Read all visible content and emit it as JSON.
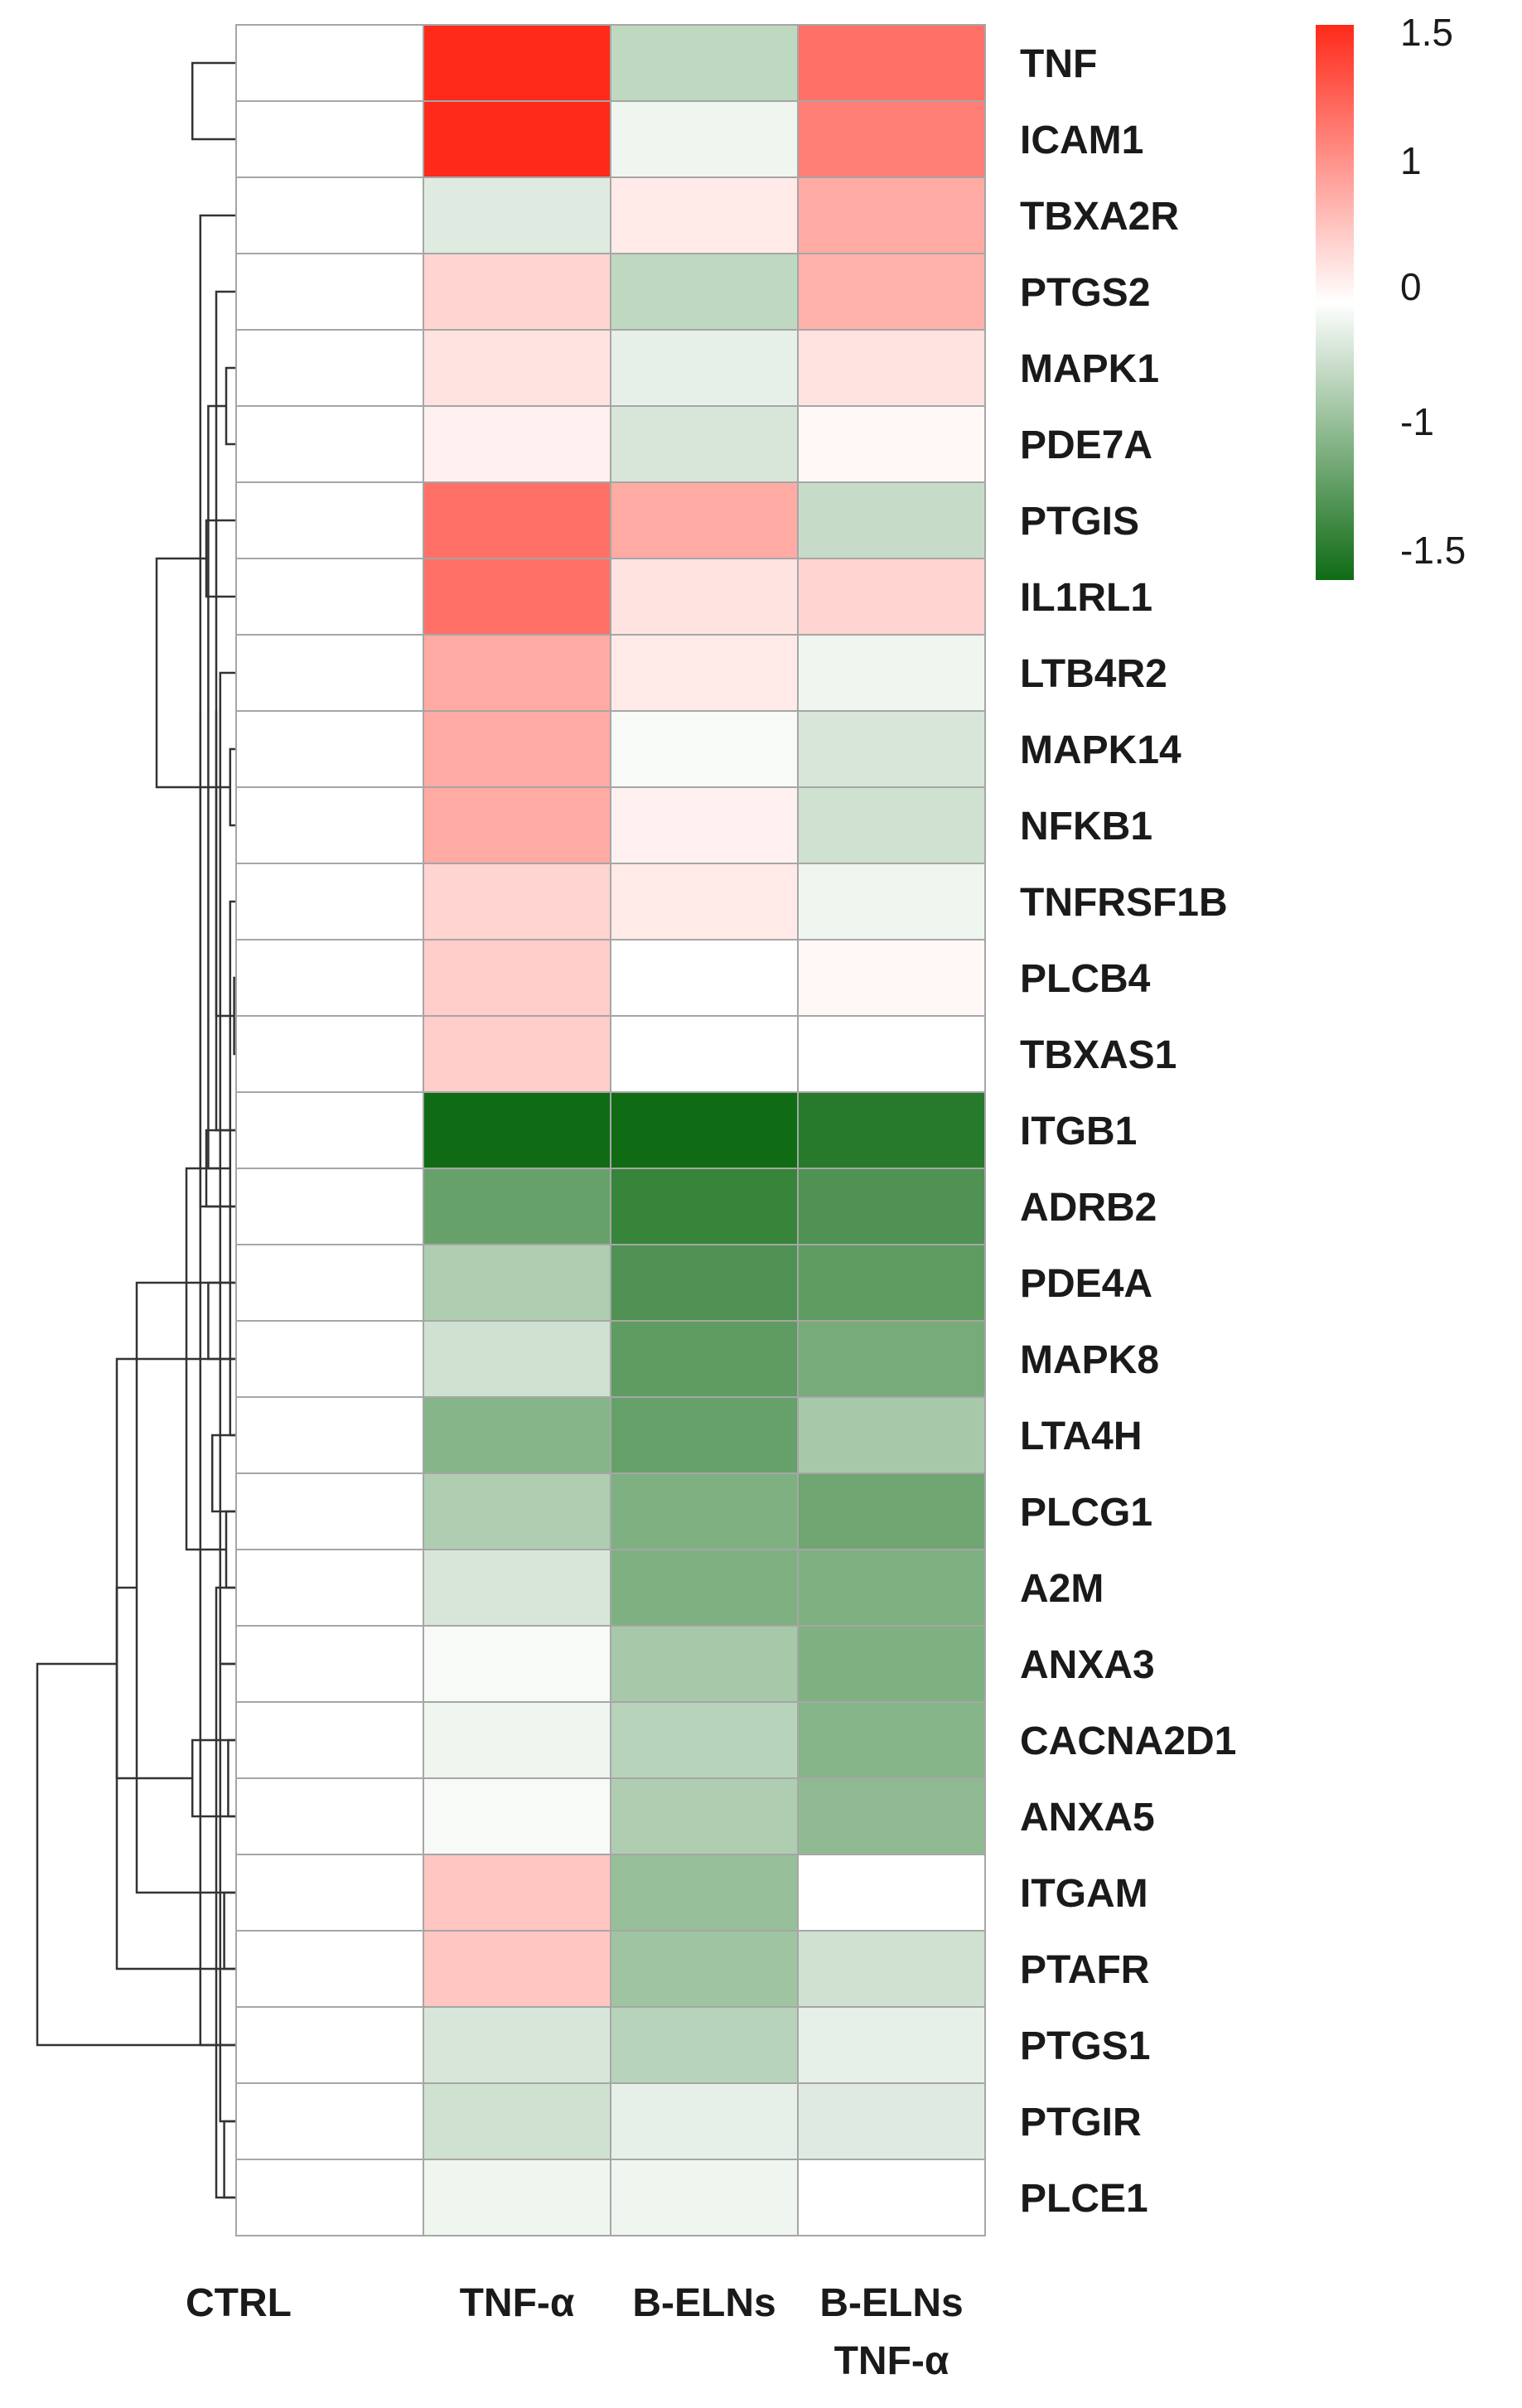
{
  "chart_data": {
    "type": "heatmap",
    "columns": [
      "CTRL",
      "TNF-α",
      "B-ELNs",
      "B-ELNs TNF-α"
    ],
    "column_labels": [
      {
        "lines": [
          "CTRL"
        ]
      },
      {
        "lines": [
          "TNF-α"
        ]
      },
      {
        "lines": [
          "B-ELNs"
        ]
      },
      {
        "lines": [
          "B-ELNs",
          "TNF-α"
        ]
      }
    ],
    "rows": [
      "TNF",
      "ICAM1",
      "TBXA2R",
      "PTGS2",
      "MAPK1",
      "PDE7A",
      "PTGIS",
      "IL1RL1",
      "LTB4R2",
      "MAPK14",
      "NFKB1",
      "TNFRSF1B",
      "PLCB4",
      "TBXAS1",
      "ITGB1",
      "ADRB2",
      "PDE4A",
      "MAPK8",
      "LTA4H",
      "PLCG1",
      "A2M",
      "ANXA3",
      "CACNA2D1",
      "ANXA5",
      "ITGAM",
      "PTAFR",
      "PTGS1",
      "PTGIR",
      "PLCE1"
    ],
    "values": [
      [
        0,
        1.5,
        -0.4,
        1.0
      ],
      [
        0,
        1.5,
        -0.1,
        0.9
      ],
      [
        0,
        -0.2,
        0.15,
        0.6
      ],
      [
        0,
        0.3,
        -0.4,
        0.55
      ],
      [
        0,
        0.2,
        -0.15,
        0.2
      ],
      [
        0,
        0.1,
        -0.25,
        0.05
      ],
      [
        0,
        1.0,
        0.6,
        -0.35
      ],
      [
        0,
        1.0,
        0.2,
        0.3
      ],
      [
        0,
        0.6,
        0.15,
        -0.1
      ],
      [
        0,
        0.6,
        -0.05,
        -0.25
      ],
      [
        0,
        0.6,
        0.1,
        -0.3
      ],
      [
        0,
        0.3,
        0.15,
        -0.1
      ],
      [
        0,
        0.35,
        0,
        0.05
      ],
      [
        0,
        0.35,
        0,
        0
      ],
      [
        0,
        -1.5,
        -1.5,
        -1.35
      ],
      [
        0,
        -0.95,
        -1.25,
        -1.1
      ],
      [
        0,
        -0.5,
        -1.1,
        -1.0
      ],
      [
        0,
        -0.3,
        -1.0,
        -0.85
      ],
      [
        0,
        -0.75,
        -0.95,
        -0.55
      ],
      [
        0,
        -0.5,
        -0.8,
        -0.9
      ],
      [
        0,
        -0.25,
        -0.8,
        -0.8
      ],
      [
        0,
        -0.05,
        -0.55,
        -0.8
      ],
      [
        0,
        -0.1,
        -0.45,
        -0.75
      ],
      [
        0,
        -0.05,
        -0.5,
        -0.7
      ],
      [
        0,
        0.4,
        -0.65,
        0
      ],
      [
        0,
        0.4,
        -0.6,
        -0.3
      ],
      [
        0,
        -0.25,
        -0.45,
        -0.15
      ],
      [
        0,
        -0.3,
        -0.15,
        -0.2
      ],
      [
        0,
        -0.1,
        -0.1,
        0
      ]
    ],
    "colorbar": {
      "ticks": [
        1.5,
        1,
        0,
        -1,
        -1.5
      ],
      "tick_labels": [
        "1.5",
        "1",
        "0",
        "-1",
        "-1.5"
      ],
      "range": [
        -1.5,
        1.5
      ]
    },
    "colors": {
      "high": "#ff2a1a",
      "mid": "#ffffff",
      "low": "#0f6b14",
      "grid": "#a6a6a6",
      "dendrogram": "#333333"
    },
    "dendrogram": {
      "side": "left",
      "merges": [
        [
          0,
          1,
          0.22
        ],
        [
          4,
          5,
          0.05
        ],
        [
          3,
          14,
          0.1
        ],
        [
          2,
          15,
          0.18
        ],
        [
          12,
          13,
          0.01
        ],
        [
          11,
          18,
          0.03
        ],
        [
          9,
          10,
          0.03
        ],
        [
          20,
          19,
          0.05
        ],
        [
          8,
          21,
          0.08
        ],
        [
          6,
          7,
          0.15
        ],
        [
          23,
          22,
          0.22
        ],
        [
          16,
          24,
          0.5
        ],
        [
          17,
          25,
          0.6
        ],
        [
          22,
          23,
          0.04
        ],
        [
          21,
          27,
          0.08
        ],
        [
          20,
          28,
          0.1
        ],
        [
          24,
          25,
          0.06
        ],
        [
          27,
          28,
          0.06
        ],
        [
          26,
          32,
          0.1
        ],
        [
          31,
          33,
          0.1
        ],
        [
          30,
          34,
          0.14
        ],
        [
          18,
          19,
          0.12
        ],
        [
          16,
          17,
          0.14
        ],
        [
          36,
          37,
          0.25
        ],
        [
          35,
          38,
          0.4
        ],
        [
          14,
          15,
          0.15
        ],
        [
          39,
          40,
          0.6
        ],
        [
          26,
          41,
          1.0
        ]
      ]
    }
  }
}
